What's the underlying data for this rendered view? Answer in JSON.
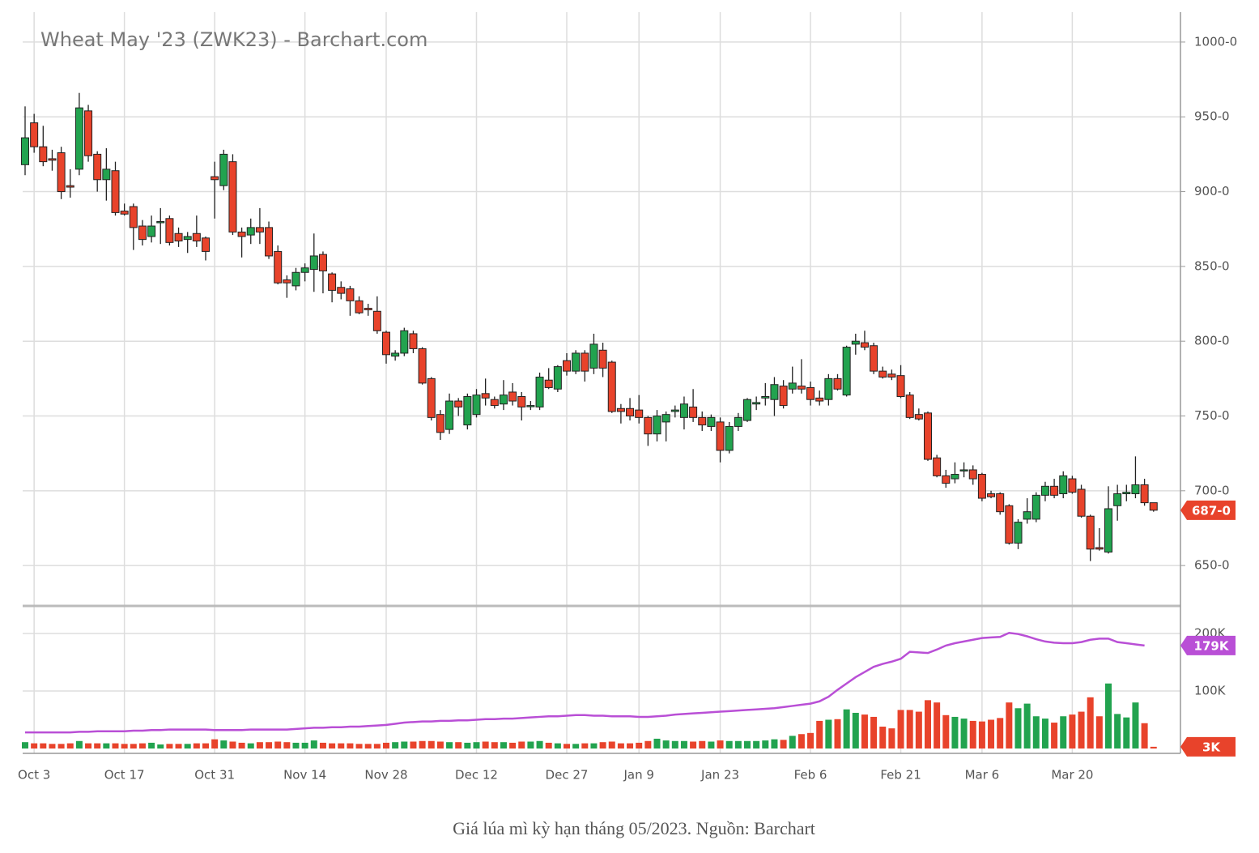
{
  "chart_data": {
    "type": "candlestick",
    "title": "Wheat May '23 (ZWK23) - Barchart.com",
    "categories": [
      null,
      "Oct 3",
      null,
      null,
      null,
      null,
      null,
      null,
      null,
      null,
      null,
      "Oct 17",
      null,
      null,
      null,
      null,
      null,
      null,
      null,
      null,
      null,
      "Oct 31",
      null,
      null,
      null,
      null,
      null,
      null,
      null,
      null,
      null,
      "Nov 14",
      null,
      null,
      null,
      null,
      null,
      null,
      null,
      null,
      "Nov 28",
      null,
      null,
      null,
      null,
      null,
      null,
      null,
      null,
      null,
      "Dec 12",
      null,
      null,
      null,
      null,
      null,
      null,
      null,
      null,
      null,
      "Dec 27",
      null,
      null,
      null,
      null,
      null,
      null,
      null,
      "Jan 9",
      null,
      null,
      null,
      null,
      null,
      null,
      null,
      null,
      "Jan 23",
      null,
      null,
      null,
      null,
      null,
      null,
      null,
      null,
      null,
      "Feb 6",
      null,
      null,
      null,
      null,
      null,
      null,
      null,
      null,
      null,
      "Feb 21",
      null,
      null,
      null,
      null,
      null,
      null,
      null,
      null,
      "Mar 6",
      null,
      null,
      null,
      null,
      null,
      null,
      null,
      null,
      null,
      "Mar 20",
      null,
      null,
      null,
      null,
      null,
      null,
      null,
      null,
      null
    ],
    "ohlc": [
      [
        918,
        957,
        911,
        936
      ],
      [
        946,
        952,
        926,
        930
      ],
      [
        930,
        944,
        917,
        920
      ],
      [
        922,
        928,
        914,
        921
      ],
      [
        926,
        930,
        895,
        900
      ],
      [
        904,
        915,
        896,
        903
      ],
      [
        915,
        966,
        911,
        956
      ],
      [
        954,
        958,
        920,
        924
      ],
      [
        925,
        927,
        900,
        908
      ],
      [
        908,
        929,
        894,
        915
      ],
      [
        914,
        920,
        884,
        886
      ],
      [
        887,
        892,
        884,
        885
      ],
      [
        890,
        892,
        861,
        876
      ],
      [
        877,
        881,
        864,
        868
      ],
      [
        870,
        884,
        866,
        877
      ],
      [
        880,
        889,
        865,
        880
      ],
      [
        882,
        884,
        864,
        866
      ],
      [
        872,
        876,
        863,
        867
      ],
      [
        868,
        873,
        859,
        870
      ],
      [
        872,
        884,
        863,
        867
      ],
      [
        869,
        870,
        854,
        860
      ],
      [
        910,
        920,
        882,
        908
      ],
      [
        904,
        928,
        901,
        925
      ],
      [
        920,
        925,
        871,
        873
      ],
      [
        873,
        876,
        856,
        870
      ],
      [
        871,
        882,
        865,
        876
      ],
      [
        876,
        889,
        865,
        873
      ],
      [
        876,
        880,
        855,
        857
      ],
      [
        860,
        864,
        838,
        839
      ],
      [
        841,
        844,
        829,
        839
      ],
      [
        837,
        849,
        834,
        846
      ],
      [
        846,
        852,
        840,
        849
      ],
      [
        848,
        872,
        833,
        857
      ],
      [
        858,
        860,
        832,
        847
      ],
      [
        845,
        846,
        826,
        834
      ],
      [
        836,
        840,
        828,
        832
      ],
      [
        835,
        837,
        817,
        827
      ],
      [
        827,
        830,
        818,
        819
      ],
      [
        822,
        825,
        817,
        821
      ],
      [
        820,
        830,
        805,
        807
      ],
      [
        806,
        807,
        785,
        791
      ],
      [
        790,
        794,
        787,
        792
      ],
      [
        792,
        809,
        790,
        807
      ],
      [
        805,
        807,
        792,
        795
      ],
      [
        795,
        796,
        771,
        772
      ],
      [
        775,
        776,
        747,
        749
      ],
      [
        751,
        754,
        734,
        739
      ],
      [
        741,
        765,
        738,
        760
      ],
      [
        760,
        762,
        750,
        756
      ],
      [
        744,
        765,
        741,
        763
      ],
      [
        751,
        768,
        749,
        764
      ],
      [
        765,
        775,
        757,
        762
      ],
      [
        761,
        763,
        755,
        757
      ],
      [
        758,
        774,
        754,
        764
      ],
      [
        766,
        772,
        757,
        760
      ],
      [
        763,
        766,
        747,
        756
      ],
      [
        757,
        760,
        754,
        757
      ],
      [
        756,
        779,
        754,
        776
      ],
      [
        774,
        782,
        768,
        769
      ],
      [
        768,
        784,
        766,
        783
      ],
      [
        787,
        792,
        777,
        780
      ],
      [
        780,
        794,
        778,
        792
      ],
      [
        792,
        794,
        773,
        780
      ],
      [
        782,
        805,
        778,
        798
      ],
      [
        794,
        799,
        776,
        782
      ],
      [
        786,
        787,
        752,
        753
      ],
      [
        755,
        758,
        745,
        753
      ],
      [
        755,
        762,
        747,
        750
      ],
      [
        754,
        764,
        745,
        749
      ],
      [
        749,
        750,
        730,
        738
      ],
      [
        738,
        754,
        733,
        750
      ],
      [
        746,
        753,
        733,
        751
      ],
      [
        753,
        757,
        749,
        754
      ],
      [
        749,
        763,
        741,
        758
      ],
      [
        756,
        768,
        746,
        749
      ],
      [
        749,
        753,
        740,
        744
      ],
      [
        743,
        751,
        740,
        749
      ],
      [
        746,
        749,
        719,
        727
      ],
      [
        727,
        746,
        725,
        743
      ],
      [
        743,
        752,
        740,
        749
      ],
      [
        747,
        762,
        746,
        761
      ],
      [
        758,
        763,
        754,
        759
      ],
      [
        762,
        772,
        757,
        763
      ],
      [
        761,
        776,
        750,
        771
      ],
      [
        770,
        774,
        755,
        757
      ],
      [
        768,
        783,
        765,
        772
      ],
      [
        770,
        788,
        765,
        768
      ],
      [
        769,
        773,
        757,
        761
      ],
      [
        762,
        767,
        757,
        760
      ],
      [
        761,
        778,
        757,
        775
      ],
      [
        775,
        778,
        767,
        768
      ],
      [
        764,
        797,
        763,
        796
      ],
      [
        798,
        805,
        791,
        800
      ],
      [
        799,
        807,
        794,
        796
      ],
      [
        797,
        799,
        778,
        780
      ],
      [
        780,
        783,
        775,
        776
      ],
      [
        778,
        781,
        774,
        776
      ],
      [
        777,
        784,
        762,
        763
      ],
      [
        764,
        766,
        748,
        749
      ],
      [
        751,
        755,
        747,
        748
      ],
      [
        752,
        753,
        720,
        721
      ],
      [
        722,
        724,
        709,
        710
      ],
      [
        710,
        714,
        702,
        705
      ],
      [
        708,
        719,
        705,
        711
      ],
      [
        714,
        719,
        709,
        714
      ],
      [
        714,
        717,
        704,
        708
      ],
      [
        711,
        712,
        693,
        695
      ],
      [
        698,
        700,
        695,
        696
      ],
      [
        698,
        699,
        684,
        686
      ],
      [
        690,
        691,
        664,
        665
      ],
      [
        665,
        681,
        661,
        679
      ],
      [
        681,
        695,
        678,
        686
      ],
      [
        681,
        699,
        679,
        697
      ],
      [
        697,
        706,
        693,
        703
      ],
      [
        703,
        708,
        695,
        697
      ],
      [
        698,
        713,
        695,
        710
      ],
      [
        708,
        710,
        698,
        699
      ],
      [
        701,
        704,
        682,
        683
      ],
      [
        683,
        684,
        653,
        661
      ],
      [
        662,
        675,
        660,
        661
      ],
      [
        659,
        703,
        658,
        688
      ],
      [
        690,
        704,
        680,
        698
      ],
      [
        698,
        704,
        693,
        699
      ],
      [
        698,
        723,
        695,
        704
      ],
      [
        704,
        708,
        690,
        692
      ],
      [
        692,
        692,
        686,
        687
      ]
    ],
    "up_color": "#22a34f",
    "down_color": "#e8432b",
    "ylim": [
      623,
      1020
    ],
    "yticks": [
      {
        "value": 650,
        "label": "650-0"
      },
      {
        "value": 700,
        "label": "700-0"
      },
      {
        "value": 750,
        "label": "750-0"
      },
      {
        "value": 800,
        "label": "800-0"
      },
      {
        "value": 850,
        "label": "850-0"
      },
      {
        "value": 900,
        "label": "900-0"
      },
      {
        "value": 950,
        "label": "950-0"
      },
      {
        "value": 1000,
        "label": "1000-0"
      }
    ],
    "last_price": {
      "value": 687,
      "label": "687-0"
    },
    "grid": true,
    "volume": {
      "values": [
        11,
        9,
        9,
        8,
        8,
        9,
        13,
        9,
        9,
        9,
        9,
        8,
        8,
        9,
        10,
        7,
        8,
        8,
        8,
        9,
        9,
        16,
        14,
        12,
        10,
        9,
        11,
        11,
        12,
        11,
        10,
        10,
        14,
        10,
        9,
        9,
        9,
        8,
        8,
        8,
        10,
        11,
        12,
        12,
        13,
        13,
        12,
        11,
        11,
        10,
        11,
        12,
        11,
        11,
        10,
        12,
        12,
        13,
        10,
        9,
        8,
        8,
        9,
        9,
        11,
        12,
        9,
        9,
        10,
        13,
        17,
        14,
        13,
        13,
        12,
        13,
        12,
        14,
        13,
        13,
        13,
        13,
        14,
        16,
        15,
        22,
        25,
        27,
        48,
        50,
        51,
        68,
        62,
        59,
        55,
        38,
        35,
        67,
        67,
        64,
        84,
        80,
        58,
        55,
        52,
        48,
        47,
        50,
        53,
        80,
        70,
        78,
        56,
        52,
        45,
        56,
        59,
        64,
        89,
        56,
        113,
        60,
        54,
        80,
        44,
        3
      ],
      "ylim": [
        0,
        245
      ],
      "yticks": [
        {
          "value": 100,
          "label": "100K"
        },
        {
          "value": 200,
          "label": "200K"
        }
      ],
      "last_label": {
        "value": 3,
        "label": "3K"
      }
    },
    "open_interest": {
      "color": "#b94fd6",
      "values": [
        28,
        28,
        28,
        28,
        28,
        28,
        29,
        29,
        30,
        30,
        30,
        30,
        31,
        31,
        32,
        32,
        33,
        33,
        33,
        33,
        33,
        32,
        32,
        32,
        32,
        33,
        33,
        33,
        33,
        33,
        34,
        35,
        36,
        36,
        37,
        37,
        38,
        38,
        39,
        40,
        41,
        43,
        45,
        46,
        47,
        47,
        48,
        48,
        49,
        49,
        50,
        51,
        51,
        52,
        52,
        53,
        54,
        55,
        56,
        56,
        57,
        58,
        58,
        57,
        57,
        56,
        56,
        56,
        55,
        55,
        56,
        57,
        59,
        60,
        61,
        62,
        63,
        64,
        65,
        66,
        67,
        68,
        69,
        70,
        72,
        74,
        76,
        78,
        82,
        90,
        102,
        113,
        124,
        133,
        142,
        147,
        151,
        156,
        168,
        167,
        166,
        172,
        179,
        183,
        186,
        189,
        192,
        193,
        194,
        201,
        199,
        195,
        190,
        186,
        184,
        183,
        183,
        185,
        189,
        191,
        191,
        185,
        183,
        181,
        179,
        null
      ],
      "last_label": {
        "value": 179,
        "label": "179K"
      }
    }
  },
  "caption": "Giá lúa mì kỳ hạn tháng 05/2023. Nguồn: Barchart"
}
